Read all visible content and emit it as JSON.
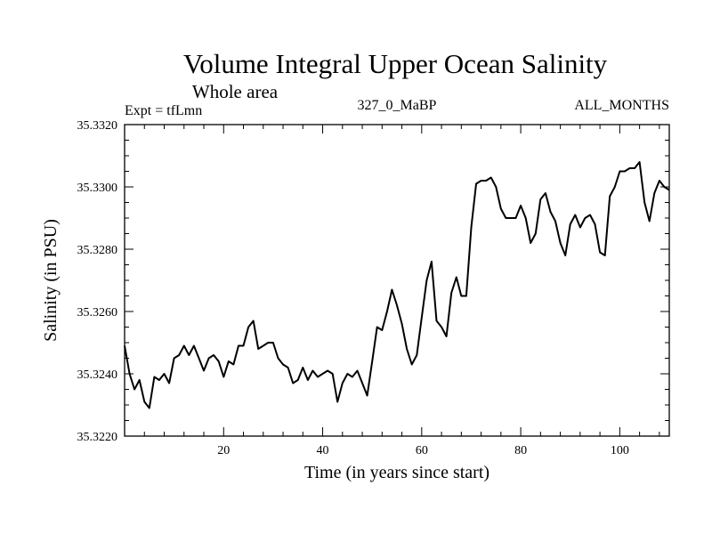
{
  "colors": {
    "background": "#ffffff",
    "line": "#000000"
  },
  "chart_data": {
    "type": "line",
    "title": "Volume Integral Upper Ocean Salinity",
    "subtitle": "Whole area",
    "header_left": "Expt = tfLmn",
    "header_center": "327_0_MaBP",
    "header_right": "ALL_MONTHS",
    "xlabel": "Time (in years since start)",
    "ylabel": "Salinity (in PSU)",
    "xlim": [
      0,
      110
    ],
    "ylim": [
      35.322,
      35.332
    ],
    "x_ticks": [
      20,
      40,
      60,
      80,
      100
    ],
    "x_tick_labels": [
      "20",
      "40",
      "60",
      "80",
      "100"
    ],
    "y_ticks": [
      35.322,
      35.324,
      35.326,
      35.328,
      35.33,
      35.332
    ],
    "y_tick_labels": [
      "35.3220",
      "35.3240",
      "35.3260",
      "35.3280",
      "35.3300",
      "35.3320"
    ],
    "series": [
      {
        "name": "Salinity",
        "x": [
          0,
          1,
          2,
          3,
          4,
          5,
          6,
          7,
          8,
          9,
          10,
          11,
          12,
          13,
          14,
          15,
          16,
          17,
          18,
          19,
          20,
          21,
          22,
          23,
          24,
          25,
          26,
          27,
          28,
          29,
          30,
          31,
          32,
          33,
          34,
          35,
          36,
          37,
          38,
          39,
          40,
          41,
          42,
          43,
          44,
          45,
          46,
          47,
          48,
          49,
          50,
          51,
          52,
          53,
          54,
          55,
          56,
          57,
          58,
          59,
          60,
          61,
          62,
          63,
          64,
          65,
          66,
          67,
          68,
          69,
          70,
          71,
          72,
          73,
          74,
          75,
          76,
          77,
          78,
          79,
          80,
          81,
          82,
          83,
          84,
          85,
          86,
          87,
          88,
          89,
          90,
          91,
          92,
          93,
          94,
          95,
          96,
          97,
          98,
          99,
          100,
          101,
          102,
          103,
          104,
          105,
          106,
          107,
          108,
          109,
          110
        ],
        "values": [
          35.3249,
          35.324,
          35.3235,
          35.3238,
          35.3231,
          35.3229,
          35.3239,
          35.3238,
          35.324,
          35.3237,
          35.3245,
          35.3246,
          35.3249,
          35.3246,
          35.3249,
          35.3245,
          35.3241,
          35.3245,
          35.3246,
          35.3244,
          35.3239,
          35.3244,
          35.3243,
          35.3249,
          35.3249,
          35.3255,
          35.3257,
          35.3248,
          35.3249,
          35.325,
          35.325,
          35.3245,
          35.3243,
          35.3242,
          35.3237,
          35.3238,
          35.3242,
          35.3238,
          35.3241,
          35.3239,
          35.324,
          35.3241,
          35.324,
          35.3231,
          35.3237,
          35.324,
          35.3239,
          35.3241,
          35.3237,
          35.3233,
          35.3244,
          35.3255,
          35.3254,
          35.326,
          35.3267,
          35.3262,
          35.3256,
          35.3248,
          35.3243,
          35.3246,
          35.3258,
          35.327,
          35.3276,
          35.3257,
          35.3255,
          35.3252,
          35.3266,
          35.3271,
          35.3265,
          35.3265,
          35.3287,
          35.3301,
          35.3302,
          35.3302,
          35.3303,
          35.33,
          35.3293,
          35.329,
          35.329,
          35.329,
          35.3294,
          35.329,
          35.3282,
          35.3285,
          35.3296,
          35.3298,
          35.3292,
          35.3289,
          35.3282,
          35.3278,
          35.3288,
          35.3291,
          35.3287,
          35.329,
          35.3291,
          35.3288,
          35.3279,
          35.3278,
          35.3297,
          35.33,
          35.3305,
          35.3305,
          35.3306,
          35.3306,
          35.3308,
          35.3295,
          35.3289,
          35.3298,
          35.3302,
          35.33,
          35.3299
        ]
      }
    ]
  }
}
